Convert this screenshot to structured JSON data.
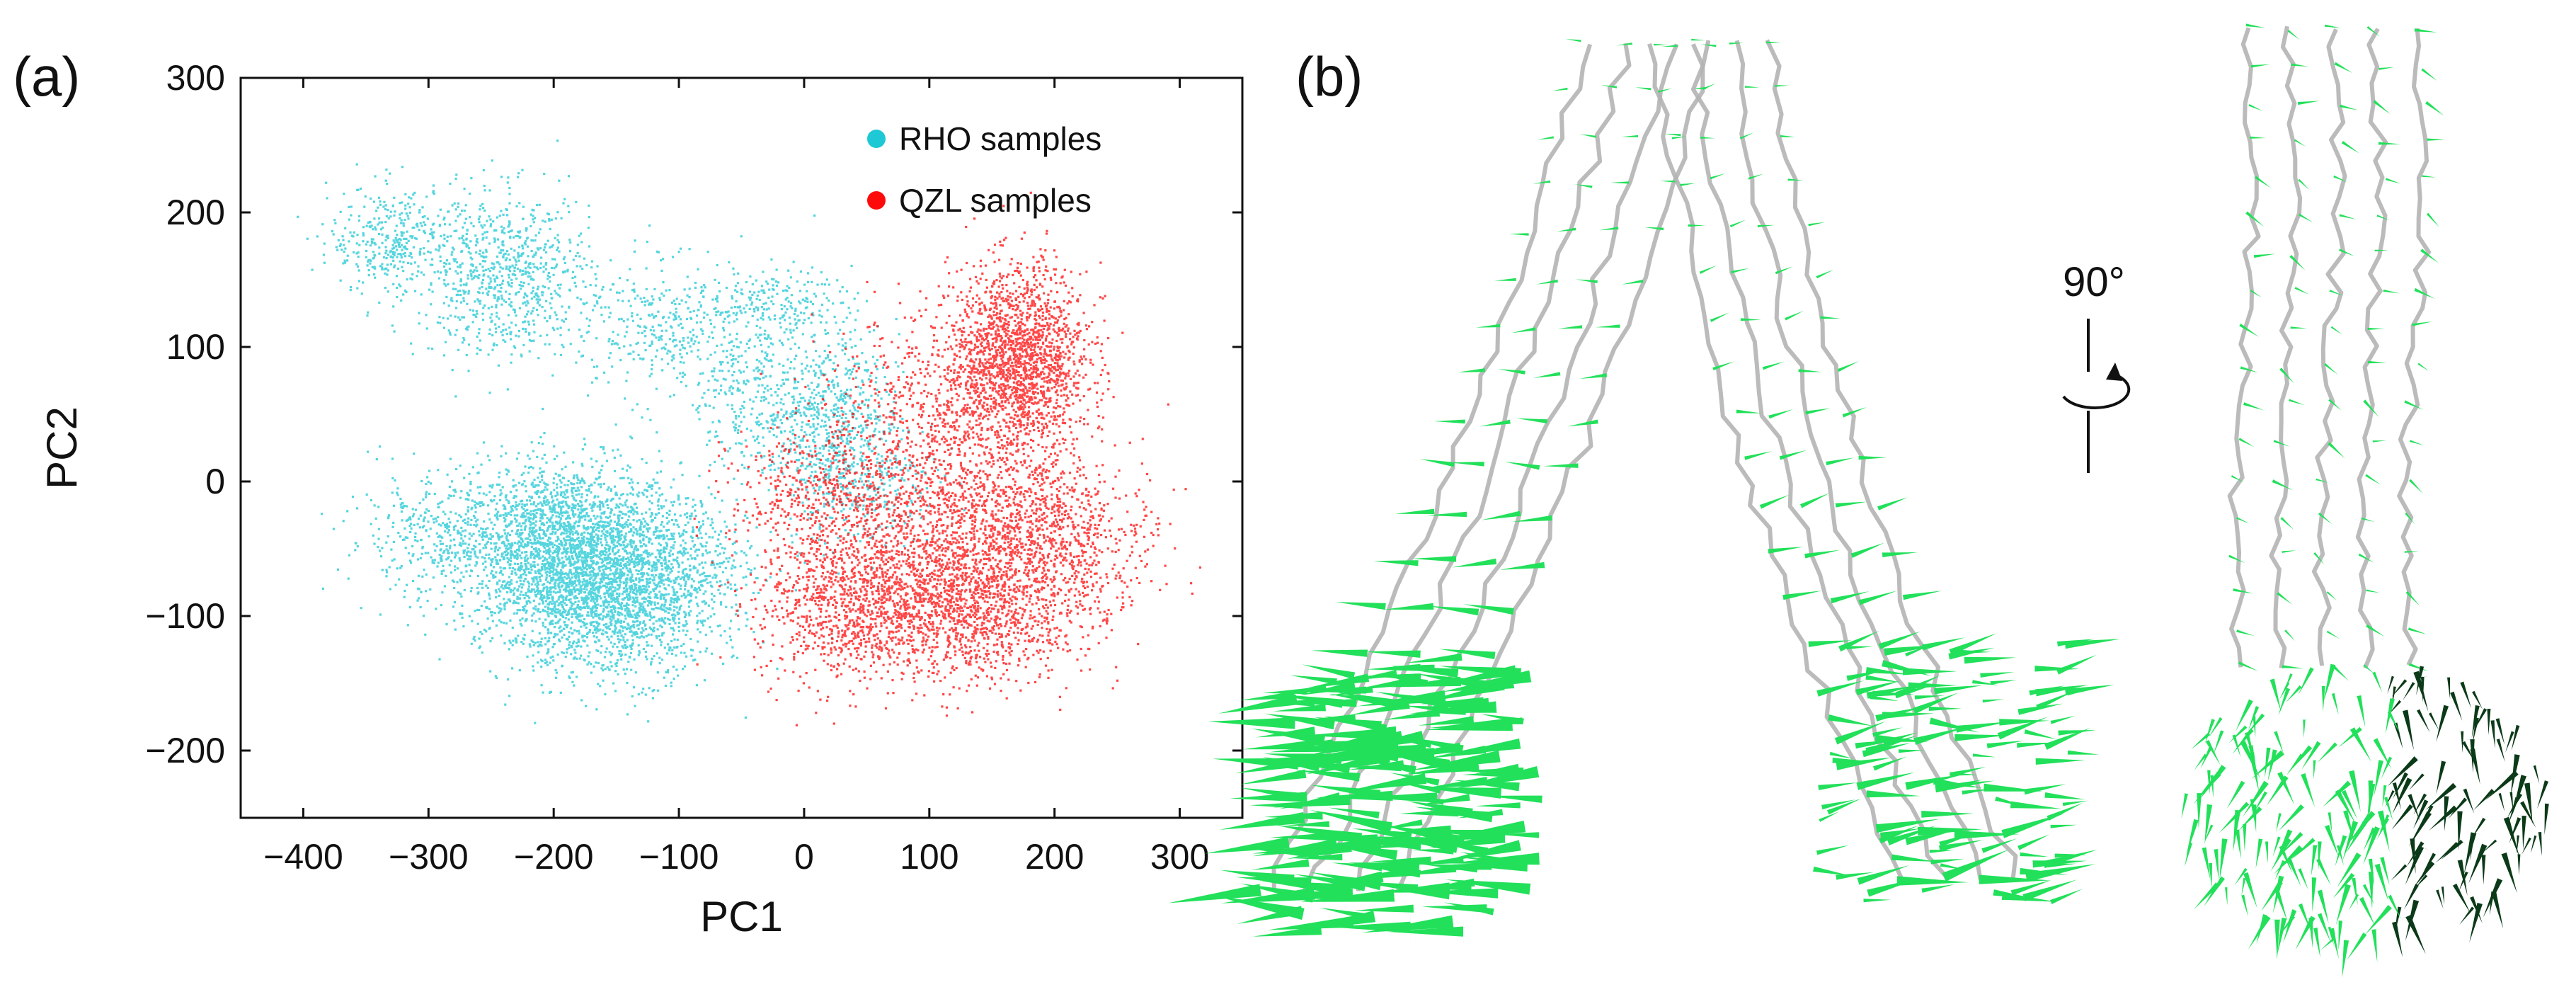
{
  "panels": {
    "a": {
      "label": "(a)"
    },
    "b": {
      "label": "(b)",
      "rotation_label": "90°"
    }
  },
  "colors": {
    "rho": "#1ec8d4",
    "qzl": "#ff0a0a",
    "arrow": "#22e05a",
    "arrow_dark": "#0b3a18",
    "backbone": "#b4b4b4"
  },
  "icons": {
    "rotation": "rotate-arrow-icon",
    "structure_front": "protein-front-view-icon",
    "structure_side": "protein-side-view-icon"
  },
  "chart_data": {
    "type": "scatter",
    "title": "",
    "xlabel": "PC1",
    "ylabel": "PC2",
    "xlim": [
      -450,
      350
    ],
    "ylim": [
      -250,
      300
    ],
    "xticks": [
      -400,
      -300,
      -200,
      -100,
      0,
      100,
      200,
      300
    ],
    "yticks": [
      -200,
      -100,
      0,
      100,
      200,
      300
    ],
    "xtick_labels": [
      "−400",
      "−300",
      "−200",
      "−100",
      "0",
      "100",
      "200",
      "300"
    ],
    "ytick_labels": [
      "−200",
      "−100",
      "0",
      "100",
      "200",
      "300"
    ],
    "grid": false,
    "legend": {
      "placement": "top-right",
      "entries": [
        "RHO samples",
        "QZL samples"
      ]
    },
    "series": [
      {
        "name": "RHO samples",
        "clusters": [
          {
            "cx": -190,
            "cy": -50,
            "sx": 45,
            "sy": 32,
            "n": 2600
          },
          {
            "cx": -150,
            "cy": -90,
            "sx": 40,
            "sy": 28,
            "n": 1400
          },
          {
            "cx": -290,
            "cy": -40,
            "sx": 40,
            "sy": 22,
            "n": 350
          },
          {
            "cx": -330,
            "cy": 180,
            "sx": 25,
            "sy": 20,
            "n": 350
          },
          {
            "cx": -240,
            "cy": 155,
            "sx": 35,
            "sy": 30,
            "n": 800
          },
          {
            "cx": -110,
            "cy": 115,
            "sx": 40,
            "sy": 25,
            "n": 380
          },
          {
            "cx": -50,
            "cy": 70,
            "sx": 30,
            "sy": 30,
            "n": 220
          },
          {
            "cx": -20,
            "cy": 135,
            "sx": 28,
            "sy": 12,
            "n": 180
          },
          {
            "cx": 15,
            "cy": 50,
            "sx": 30,
            "sy": 30,
            "n": 650
          },
          {
            "cx": 45,
            "cy": 0,
            "sx": 30,
            "sy": 25,
            "n": 280
          },
          {
            "cx": -90,
            "cy": -55,
            "sx": 25,
            "sy": 25,
            "n": 250
          }
        ]
      },
      {
        "name": "QZL samples",
        "clusters": [
          {
            "cx": 170,
            "cy": 90,
            "sx": 28,
            "sy": 35,
            "n": 1900
          },
          {
            "cx": 100,
            "cy": 50,
            "sx": 45,
            "sy": 35,
            "n": 600
          },
          {
            "cx": 130,
            "cy": -85,
            "sx": 50,
            "sy": 30,
            "n": 1900
          },
          {
            "cx": 30,
            "cy": -90,
            "sx": 35,
            "sy": 30,
            "n": 850
          },
          {
            "cx": 140,
            "cy": -20,
            "sx": 55,
            "sy": 25,
            "n": 900
          },
          {
            "cx": 10,
            "cy": -10,
            "sx": 35,
            "sy": 25,
            "n": 450
          },
          {
            "cx": 220,
            "cy": -40,
            "sx": 30,
            "sy": 25,
            "n": 300
          }
        ]
      }
    ]
  }
}
